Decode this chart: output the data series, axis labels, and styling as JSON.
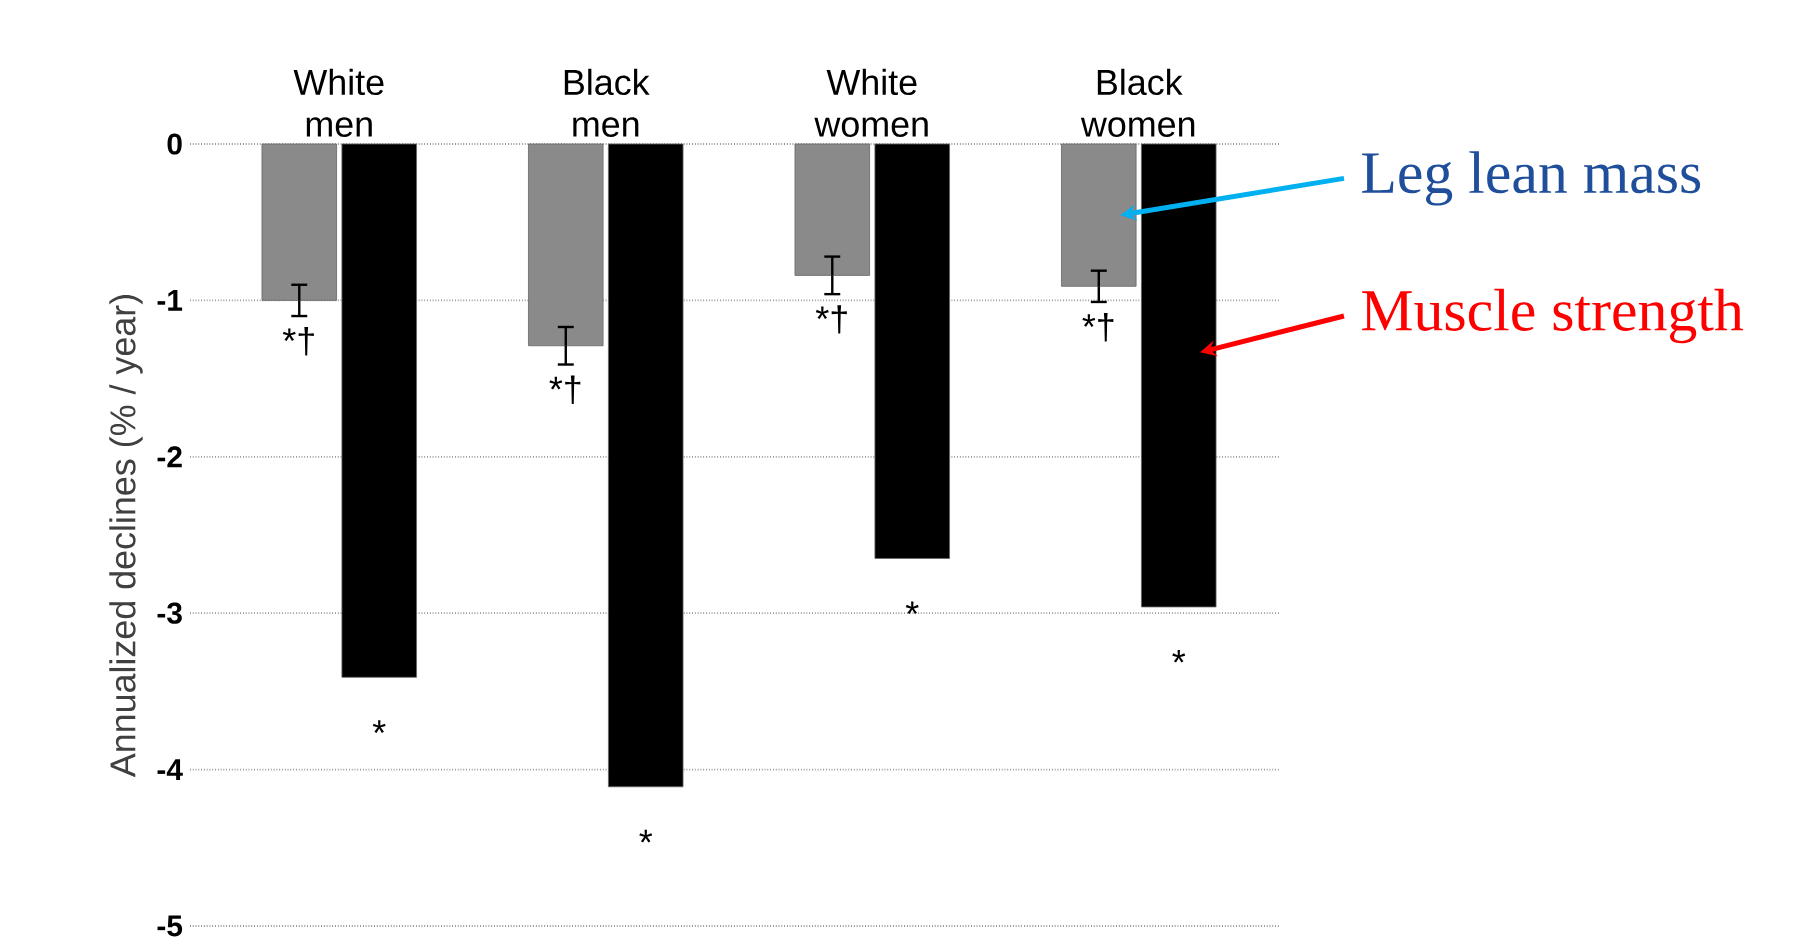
{
  "chart_data": {
    "type": "bar",
    "ylabel": "Annualized declines (% / year)",
    "categories": [
      "White men",
      "Black men",
      "White women",
      "Black women"
    ],
    "series": [
      {
        "name": "Leg lean mass",
        "color": "#8a8a8a",
        "values": [
          -1.0,
          -1.29,
          -0.84,
          -0.91
        ],
        "errors": [
          0.1,
          0.12,
          0.12,
          0.1
        ],
        "value_labels": [
          "*†",
          "*†",
          "*†",
          "*†"
        ]
      },
      {
        "name": "Muscle strength",
        "color": "#000000",
        "values": [
          -3.41,
          -4.11,
          -2.65,
          -2.96
        ],
        "value_labels": [
          "*",
          "*",
          "*",
          "*"
        ]
      }
    ],
    "ylim": [
      -5,
      0
    ],
    "yticks": [
      -5,
      -4,
      -3,
      -2,
      -1,
      0
    ],
    "grid": "y"
  }
}
